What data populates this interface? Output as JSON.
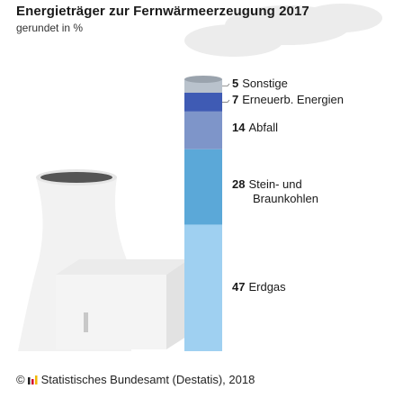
{
  "header": {
    "title": "Energieträger zur Fernwärmeerzeugung 2017",
    "subtitle": "gerundet in %"
  },
  "footer": {
    "copyright": "©",
    "source": "Statistisches Bundesamt (Destatis), 2018"
  },
  "colors": {
    "Sonstige": "#b9c2cc",
    "Erneuerb. Energien": "#3f5bb4",
    "Abfall": "#7e95c9",
    "Stein- und Braunkohlen": "#5ba8d8",
    "Erdgas": "#9fd0f1"
  },
  "chart_data": {
    "type": "stacked-bar",
    "title": "Energieträger zur Fernwärmeerzeugung 2017",
    "subtitle": "gerundet in %",
    "unit": "%",
    "segments": [
      {
        "name": "Sonstige",
        "value": 5,
        "label_lines": [
          "Sonstige"
        ]
      },
      {
        "name": "Erneuerb. Energien",
        "value": 7,
        "label_lines": [
          "Erneuerb. Energien"
        ]
      },
      {
        "name": "Abfall",
        "value": 14,
        "label_lines": [
          "Abfall"
        ]
      },
      {
        "name": "Stein- und Braunkohlen",
        "value": 28,
        "label_lines": [
          "Stein- und",
          "Braunkohlen"
        ]
      },
      {
        "name": "Erdgas",
        "value": 47,
        "label_lines": [
          "Erdgas"
        ]
      }
    ]
  }
}
